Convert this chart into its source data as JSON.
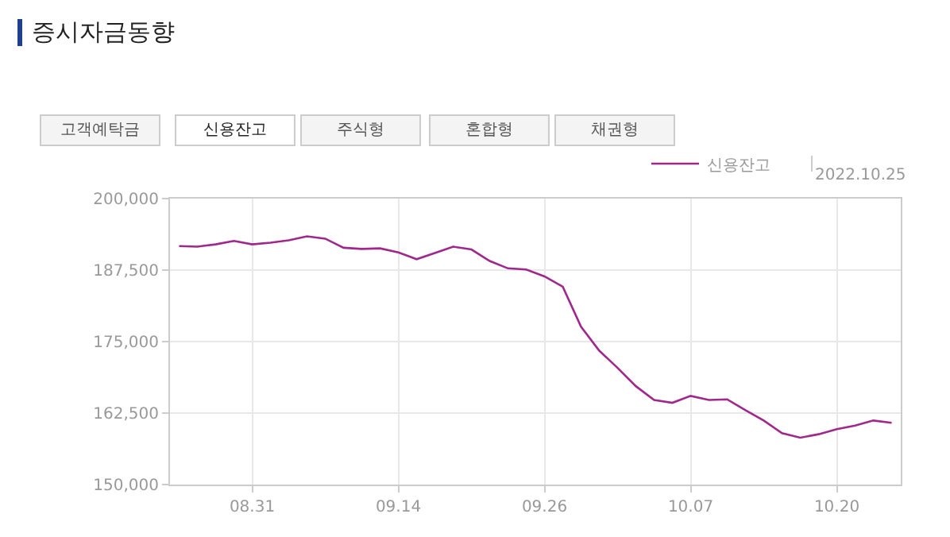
{
  "chart_data": {
    "type": "line",
    "title": "증시자금동향",
    "annotations": [
      "고객예탁금",
      "신용잔고",
      "주식형",
      "혼합형",
      "채권형",
      "2022.10.25"
    ],
    "categories": [
      null,
      null,
      null,
      null,
      "08.31",
      null,
      null,
      null,
      null,
      null,
      null,
      null,
      "09.14",
      null,
      null,
      null,
      null,
      null,
      null,
      null,
      "09.26",
      null,
      null,
      null,
      null,
      null,
      null,
      null,
      "10.07",
      null,
      null,
      null,
      null,
      null,
      null,
      null,
      "10.20",
      null,
      null,
      null
    ],
    "series": [
      {
        "name": "신용잔고",
        "color": "#a0288c",
        "values": [
          191700,
          191600,
          192000,
          192600,
          192000,
          192300,
          192700,
          193400,
          193000,
          191400,
          191200,
          191300,
          190600,
          189400,
          190500,
          191600,
          191100,
          189100,
          187800,
          187600,
          186400,
          184600,
          177600,
          173400,
          170400,
          167200,
          164800,
          164300,
          165500,
          164800,
          164900,
          163000,
          161200,
          159000,
          158200,
          158800,
          159700,
          160300,
          161200,
          160800
        ]
      }
    ],
    "ylim": [
      150000,
      200000
    ],
    "yticks": [
      {
        "value": 150000,
        "label": "150,000"
      },
      {
        "value": 162500,
        "label": "162,500"
      },
      {
        "value": 175000,
        "label": "175,000"
      },
      {
        "value": 187500,
        "label": "187,500"
      },
      {
        "value": 200000,
        "label": "200,000"
      }
    ],
    "grid": true,
    "legend": "top right",
    "marker": "none",
    "line_style": "solid"
  }
}
